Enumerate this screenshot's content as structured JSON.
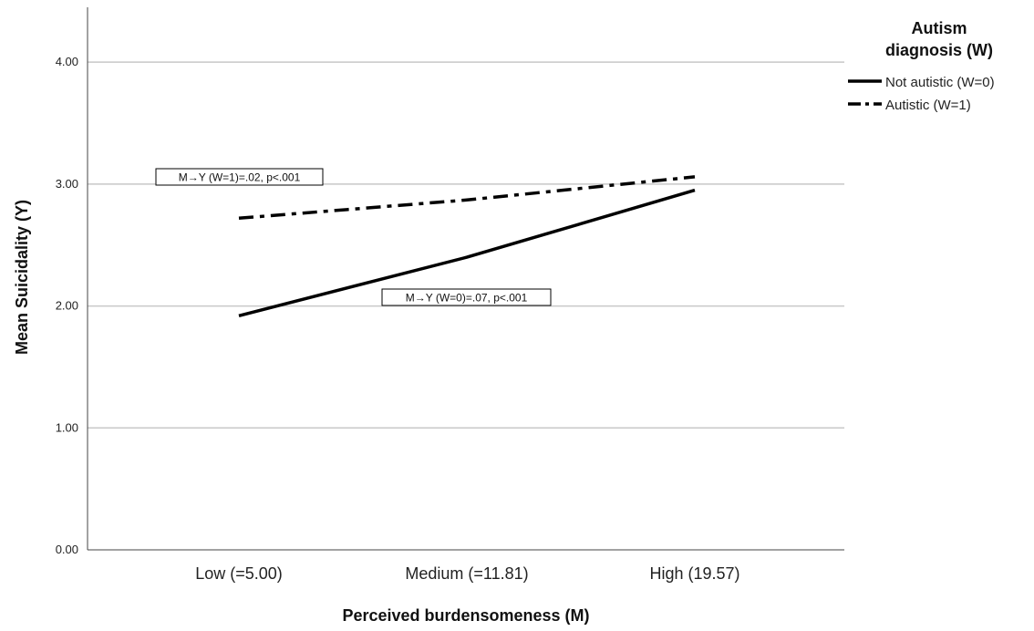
{
  "chart_data": {
    "type": "line",
    "title": "",
    "xlabel": "Perceived burdensomeness (M)",
    "ylabel": "Mean Suicidality (Y)",
    "categories": [
      "Low (=5.00)",
      "Medium (=11.81)",
      "High (19.57)"
    ],
    "yticks": [
      "0.00",
      "1.00",
      "2.00",
      "3.00",
      "4.00"
    ],
    "ylim": [
      0,
      4.45
    ],
    "grid": true,
    "legend": {
      "title_lines": [
        "Autism",
        "diagnosis (W)"
      ],
      "placement": "top-right"
    },
    "series": [
      {
        "name": "Not autistic (W=0)",
        "values": [
          1.92,
          2.4,
          2.95
        ],
        "style": "solid",
        "color": "#000000"
      },
      {
        "name": "Autistic (W=1)",
        "values": [
          2.72,
          2.87,
          3.06
        ],
        "style": "dashdot",
        "color": "#000000"
      }
    ],
    "annotations": [
      {
        "text": "M→Y (W=1)=.02, p<.001"
      },
      {
        "text": "M→Y (W=0)=.07, p<.001"
      }
    ]
  }
}
